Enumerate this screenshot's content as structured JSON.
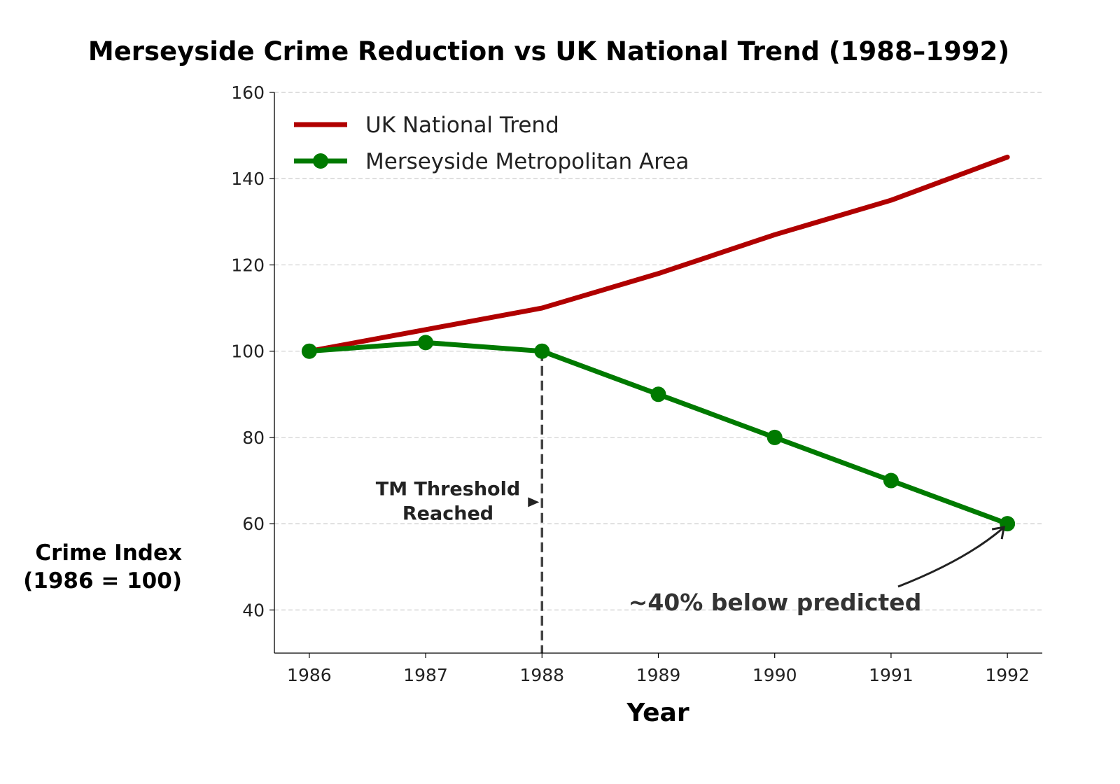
{
  "chart_data": {
    "type": "line",
    "title": "Merseyside Crime Reduction vs UK National Trend (1988–1992)",
    "xlabel": "Year",
    "ylabel": "Crime Index\n(1986 = 100)",
    "ylabel_lines": [
      "Crime Index",
      "(1986 = 100)"
    ],
    "x": [
      1986,
      1987,
      1988,
      1989,
      1990,
      1991,
      1992
    ],
    "xlim": [
      1985.7,
      1992.3
    ],
    "ylim": [
      30,
      160
    ],
    "yticks": [
      40,
      60,
      80,
      100,
      120,
      140,
      160
    ],
    "grid": "y-dashed",
    "legend_position": "top-left",
    "series": [
      {
        "name": "UK National Trend",
        "color": "#b00000",
        "marker": "none",
        "values": [
          100,
          105,
          110,
          118,
          127,
          135,
          145
        ]
      },
      {
        "name": "Merseyside Metropolitan Area",
        "color": "#007a00",
        "marker": "circle",
        "values": [
          100,
          102,
          100,
          90,
          80,
          70,
          60
        ]
      }
    ],
    "annotations": [
      {
        "type": "vline",
        "x": 1988,
        "style": "dashed",
        "color": "#444444"
      },
      {
        "type": "text-arrow",
        "lines": [
          "TM Threshold",
          "Reached"
        ],
        "text_at": [
          1987.2,
          65
        ],
        "arrow_to": [
          1988,
          65
        ]
      },
      {
        "type": "text-arrow",
        "text": "~40% below predicted",
        "text_at": [
          1990,
          42
        ],
        "arrow_to": [
          1992,
          60
        ]
      }
    ]
  }
}
